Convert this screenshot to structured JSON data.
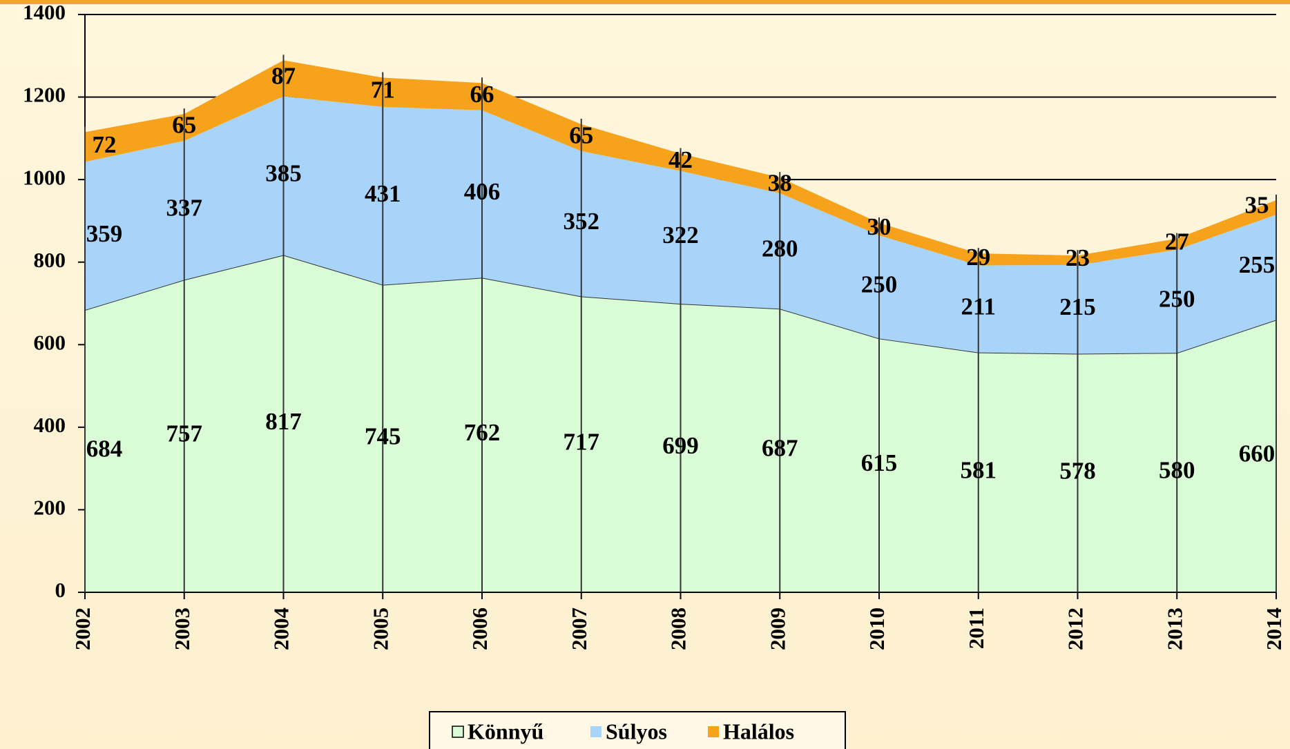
{
  "chart_data": {
    "type": "stacked-area",
    "categories": [
      "2002",
      "2003",
      "2004",
      "2005",
      "2006",
      "2007",
      "2008",
      "2009",
      "2010",
      "2011",
      "2012",
      "2013",
      "2014"
    ],
    "series": [
      {
        "name": "Könnyű",
        "color": "#d9fcd6",
        "values": [
          684,
          757,
          817,
          745,
          762,
          717,
          699,
          687,
          615,
          581,
          578,
          580,
          660
        ]
      },
      {
        "name": "Súlyos",
        "color": "#a8d4fa",
        "values": [
          359,
          337,
          385,
          431,
          406,
          352,
          322,
          280,
          250,
          211,
          215,
          250,
          255
        ]
      },
      {
        "name": "Halálos",
        "color": "#f7a21b",
        "values": [
          72,
          65,
          87,
          71,
          66,
          65,
          42,
          38,
          30,
          29,
          23,
          27,
          35
        ]
      }
    ],
    "ylim": [
      0,
      1400
    ],
    "yticks": [
      0,
      200,
      400,
      600,
      800,
      1000,
      1200,
      1400
    ],
    "grid": true
  }
}
